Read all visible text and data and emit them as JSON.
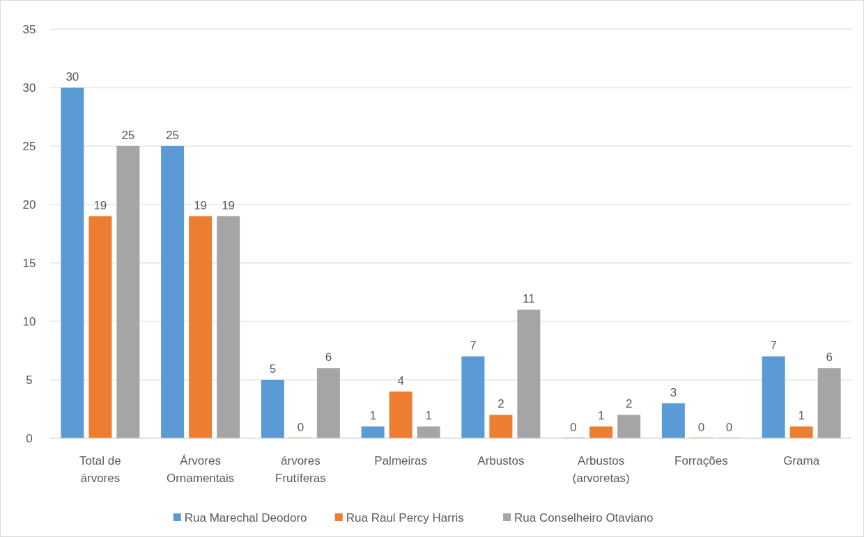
{
  "chart_data": {
    "type": "bar",
    "categories": [
      "Total de árvores",
      "Árvores Ornamentais",
      "árvores Frutíferas",
      "Palmeiras",
      "Arbustos",
      "Arbustos (arvoretas)",
      "Forrações",
      "Grama"
    ],
    "series": [
      {
        "name": "Rua Marechal Deodoro",
        "color": "#5b9bd5",
        "values": [
          30,
          25,
          5,
          1,
          7,
          0,
          3,
          7
        ]
      },
      {
        "name": "Rua Raul Percy Harris",
        "color": "#ed7d31",
        "values": [
          19,
          19,
          0,
          4,
          2,
          1,
          0,
          1
        ]
      },
      {
        "name": "Rua Conselheiro Otaviano",
        "color": "#a5a5a5",
        "values": [
          25,
          19,
          6,
          1,
          11,
          2,
          0,
          6
        ]
      }
    ],
    "ylim": [
      0,
      35
    ],
    "yticks": [
      0,
      5,
      10,
      15,
      20,
      25,
      30,
      35
    ],
    "grid": "y",
    "data_labels": true,
    "legend": "bottom"
  }
}
